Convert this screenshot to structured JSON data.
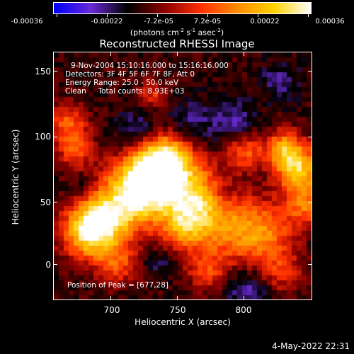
{
  "colorbar": {
    "tick_labels": [
      "-0.00036",
      "-0.00022",
      "-7.2e-05",
      "7.2e-05",
      "0.00022",
      "0.00036"
    ],
    "units_main": "(photons cm",
    "units_sup1": "-2",
    "units_mid1": " s",
    "units_sup2": "-1",
    "units_mid2": " asec",
    "units_sup3": "-2",
    "units_end": ")",
    "colors": [
      "#0000ff",
      "#6a2bd6",
      "#000000",
      "#8b0000",
      "#ff3000",
      "#ff8c00",
      "#ffd200",
      "#ffffff"
    ]
  },
  "title": "Reconstructed RHESSI Image",
  "info": {
    "time_range": "9-Nov-2004 15:10:16.000 to 15:16:16.000",
    "detectors": "Detectors: 3F 4F 5F 6F 7F 8F, Att 0",
    "energy_range": "Energy Range: 25.0 - 50.0 keV",
    "clean": "Clean     Total counts: 8.93E+03"
  },
  "peak": "Position of Peak = [677,28]",
  "axes": {
    "xlabel": "Heliocentric X (arcsec)",
    "ylabel": "Heliocentric Y (arcsec)",
    "x_ticks": [
      "700",
      "750",
      "800"
    ],
    "y_ticks": [
      "0",
      "50",
      "100",
      "150"
    ]
  },
  "timestamp": "4-May-2022 22:31"
}
